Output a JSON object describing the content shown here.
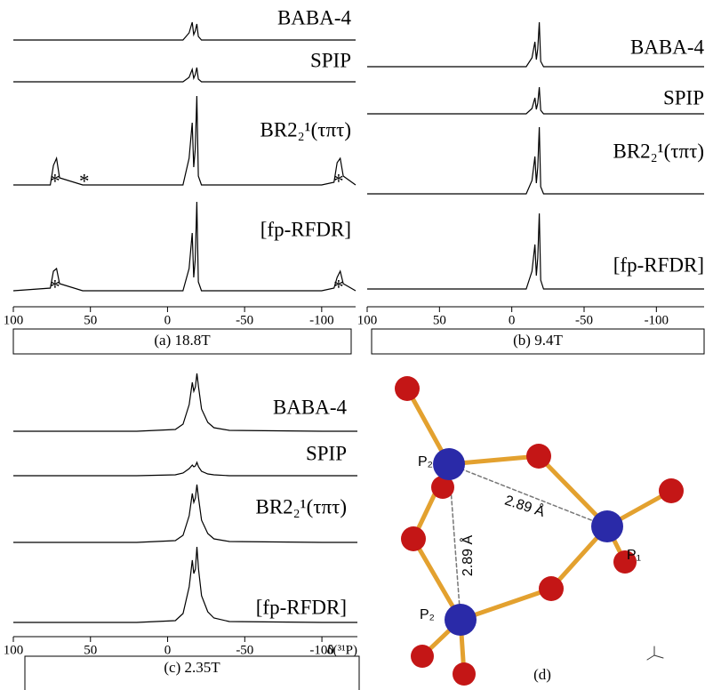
{
  "chart_data": [
    {
      "type": "line",
      "caption": "(a) 18.8T",
      "color": "#000000",
      "xlim": [
        100,
        -122
      ],
      "xticks": [
        100,
        50,
        0,
        -50,
        -100
      ],
      "x": [
        100,
        76,
        74,
        72,
        70,
        55,
        20,
        -10,
        -14,
        -16,
        -17,
        -18,
        -19,
        -20,
        -22,
        -30,
        -100,
        -108,
        -110,
        -112,
        -114,
        -122
      ],
      "series": [
        {
          "name": "BABA-4",
          "values": [
            0,
            0,
            0,
            0,
            0,
            0,
            0,
            0,
            8,
            20,
            6,
            10,
            18,
            4,
            0,
            0,
            0,
            0,
            0,
            0,
            0,
            0
          ]
        },
        {
          "name": "SPIP",
          "values": [
            0,
            0,
            0,
            0,
            0,
            0,
            0,
            0,
            5,
            14,
            4,
            8,
            16,
            3,
            0,
            0,
            0,
            0,
            0,
            0,
            0,
            0
          ]
        },
        {
          "name": "BR2₂¹(τπτ)",
          "values": [
            0,
            0,
            22,
            30,
            8,
            0,
            0,
            0,
            30,
            70,
            20,
            40,
            100,
            10,
            0,
            0,
            0,
            3,
            25,
            30,
            10,
            0
          ]
        },
        {
          "name": "[fp-RFDR]",
          "values": [
            0,
            3,
            22,
            25,
            8,
            0,
            0,
            0,
            25,
            65,
            15,
            35,
            100,
            10,
            0,
            0,
            0,
            3,
            15,
            22,
            8,
            0
          ]
        }
      ],
      "annotations": [
        {
          "text": "*",
          "x": 73,
          "series": 2
        },
        {
          "text": "*",
          "x": 54,
          "series": 2
        },
        {
          "text": "*",
          "x": -111,
          "series": 2
        },
        {
          "text": "*",
          "x": 73,
          "series": 3
        },
        {
          "text": "*",
          "x": -111,
          "series": 3
        }
      ]
    },
    {
      "type": "line",
      "caption": "(b) 9.4T",
      "color": "#000000",
      "xlim": [
        100,
        -133
      ],
      "xticks": [
        100,
        50,
        0,
        -50,
        -100
      ],
      "x": [
        100,
        76,
        74,
        72,
        70,
        55,
        20,
        -10,
        -14,
        -16,
        -17,
        -18,
        -19,
        -20,
        -22,
        -30,
        -100,
        -108,
        -110,
        -112,
        -114,
        -133
      ],
      "series": [
        {
          "name": "BABA-4",
          "values": [
            0,
            0,
            0,
            0,
            0,
            0,
            0,
            0,
            10,
            28,
            8,
            20,
            50,
            6,
            0,
            0,
            0,
            0,
            0,
            0,
            0,
            0
          ]
        },
        {
          "name": "SPIP",
          "values": [
            0,
            0,
            0,
            0,
            0,
            0,
            0,
            0,
            6,
            18,
            5,
            12,
            30,
            4,
            0,
            0,
            0,
            0,
            0,
            0,
            0,
            0
          ]
        },
        {
          "name": "BR2₂¹(τπτ)",
          "values": [
            0,
            0,
            0,
            0,
            0,
            0,
            0,
            0,
            15,
            42,
            12,
            30,
            75,
            8,
            0,
            0,
            0,
            0,
            0,
            0,
            0,
            0
          ]
        },
        {
          "name": "[fp-RFDR]",
          "values": [
            0,
            0,
            0,
            0,
            0,
            0,
            0,
            0,
            20,
            50,
            15,
            35,
            85,
            10,
            0,
            0,
            0,
            0,
            0,
            0,
            0,
            0
          ]
        }
      ],
      "annotations": []
    },
    {
      "type": "line",
      "caption": "(c) 2.35T",
      "xlabel": "δ(³¹P)",
      "color": "#000000",
      "xlim": [
        100,
        -123
      ],
      "xticks": [
        100,
        50,
        0,
        -50,
        -100
      ],
      "x": [
        100,
        76,
        74,
        72,
        70,
        55,
        20,
        -5,
        -10,
        -14,
        -16,
        -17,
        -18,
        -19,
        -20,
        -22,
        -26,
        -30,
        -40,
        -100,
        -123
      ],
      "series": [
        {
          "name": "BABA-4",
          "values": [
            0,
            0,
            0,
            0,
            0,
            0,
            0,
            2,
            8,
            30,
            55,
            45,
            50,
            65,
            50,
            25,
            10,
            4,
            1,
            0,
            0
          ]
        },
        {
          "name": "SPIP",
          "values": [
            0,
            0,
            0,
            0,
            0,
            0,
            0,
            1,
            3,
            8,
            12,
            10,
            11,
            15,
            10,
            5,
            2,
            1,
            0,
            0,
            0
          ]
        },
        {
          "name": "BR2₂¹(τπτ)",
          "values": [
            0,
            0,
            0,
            0,
            0,
            0,
            0,
            2,
            8,
            30,
            55,
            45,
            50,
            65,
            50,
            25,
            10,
            4,
            1,
            0,
            0
          ]
        },
        {
          "name": "[fp-RFDR]",
          "values": [
            0,
            0,
            0,
            0,
            0,
            0,
            0,
            2,
            10,
            40,
            70,
            55,
            60,
            85,
            60,
            30,
            12,
            5,
            1,
            0,
            0
          ]
        }
      ],
      "annotations": []
    }
  ],
  "diagram": {
    "labels": [
      "P₂",
      "P₁",
      "P₂",
      "2.89 Å",
      "2.89 Å"
    ],
    "caption": "(d)"
  }
}
